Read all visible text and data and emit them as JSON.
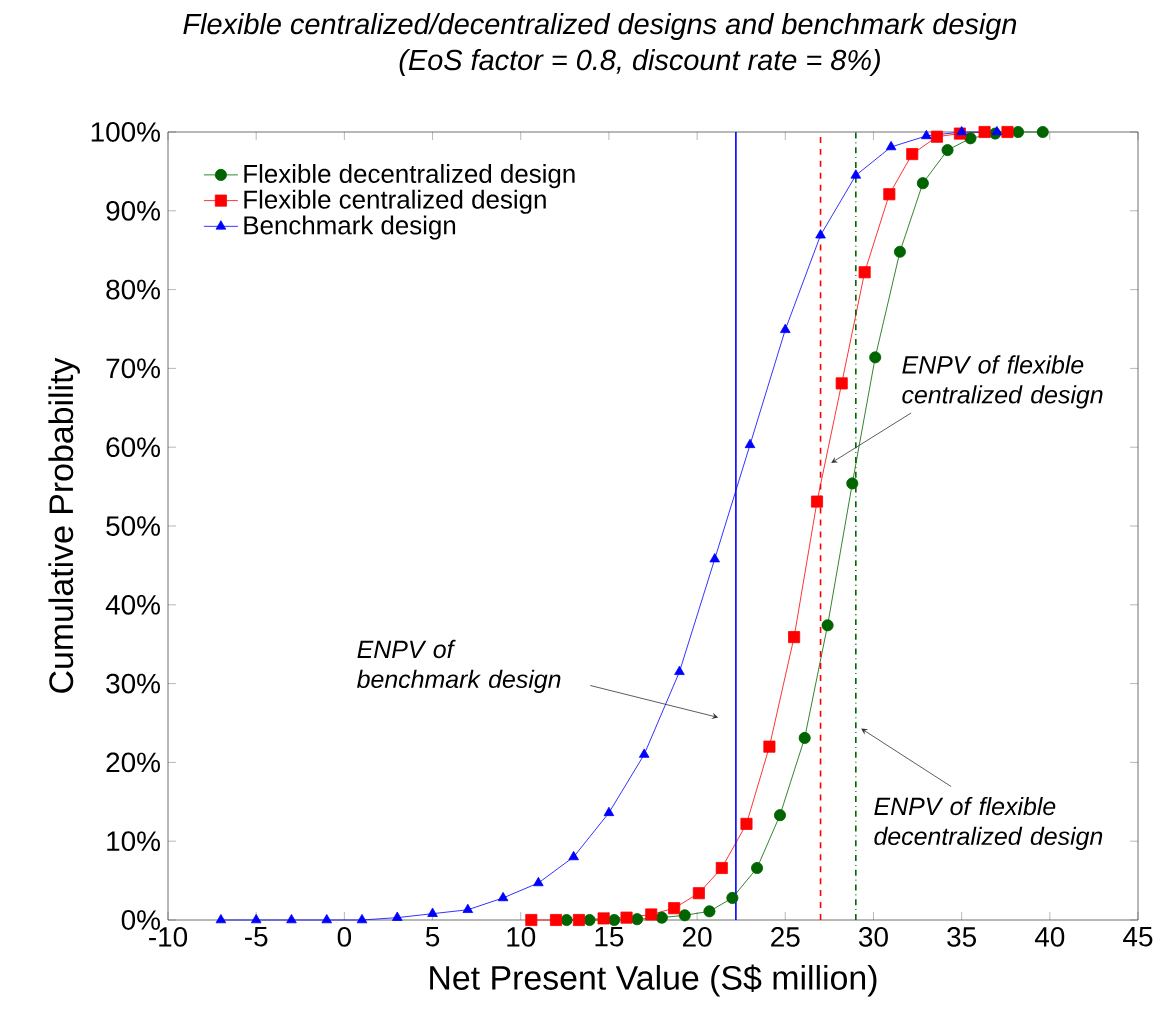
{
  "chart_data": {
    "type": "line",
    "title": "Flexible centralized/decentralized designs and benchmark design",
    "subtitle": "(EoS factor = 0.8, discount rate = 8%)",
    "xlabel": "Net Present Value (S$ million)",
    "ylabel": "Cumulative Probability",
    "series": [
      {
        "name": "Flexible decentralized design",
        "color": "#006400",
        "marker": "circle",
        "x": [
          12.6,
          13.9,
          15.3,
          16.6,
          18.0,
          19.3,
          20.7,
          22.0,
          23.4,
          24.7,
          26.1,
          27.4,
          28.8,
          30.1,
          31.5,
          32.8,
          34.2,
          35.5,
          36.9,
          38.2,
          39.6
        ],
        "values": [
          0,
          0,
          0,
          0.1,
          0.3,
          0.6,
          1.1,
          2.8,
          6.6,
          13.3,
          23.1,
          37.4,
          55.4,
          71.4,
          84.8,
          93.5,
          97.7,
          99.2,
          99.8,
          100,
          100
        ]
      },
      {
        "name": "Flexible centralized design",
        "color": "#ff0000",
        "marker": "square",
        "x": [
          10.6,
          12.0,
          13.3,
          14.7,
          16.0,
          17.4,
          18.7,
          20.1,
          21.4,
          22.8,
          24.1,
          25.5,
          26.8,
          28.2,
          29.5,
          30.9,
          32.2,
          33.6,
          34.9,
          36.3,
          37.6
        ],
        "values": [
          0,
          0,
          0,
          0.2,
          0.3,
          0.7,
          1.5,
          3.4,
          6.6,
          12.2,
          22.0,
          35.9,
          53.1,
          68.1,
          82.2,
          92.1,
          97.2,
          99.4,
          99.8,
          100,
          100
        ]
      },
      {
        "name": "Benchmark design",
        "color": "#0000ff",
        "marker": "triangle",
        "x": [
          -7,
          -5,
          -3,
          -1,
          1,
          3,
          5,
          7,
          9,
          11,
          13,
          15,
          17,
          19,
          21,
          23,
          25,
          27,
          29,
          31,
          33,
          35,
          37
        ],
        "values": [
          0,
          0,
          0,
          0,
          0,
          0.3,
          0.8,
          1.3,
          2.8,
          4.7,
          8.0,
          13.6,
          21.0,
          31.5,
          45.8,
          60.3,
          74.9,
          86.9,
          94.5,
          98.1,
          99.5,
          100,
          100
        ]
      }
    ],
    "ref_lines": [
      {
        "axis": "x",
        "value": 22.2,
        "color": "#0000ff",
        "line_style": "solid"
      },
      {
        "axis": "x",
        "value": 27.0,
        "color": "#ff0000",
        "line_style": "dashed"
      },
      {
        "axis": "x",
        "value": 29.0,
        "color": "#006400",
        "line_style": "dashdot"
      }
    ],
    "annotations": [
      {
        "text": "ENPV of flexible centralized design",
        "x": 27.6,
        "y": 58
      },
      {
        "text": "ENPV of benchmark design",
        "x": 21.2,
        "y": 25.7
      },
      {
        "text": "ENPV of flexible decentralized design",
        "x": 29.3,
        "y": 24.3
      }
    ],
    "xlim": [
      -10,
      45
    ],
    "xticks": [
      -10,
      -5,
      0,
      5,
      10,
      15,
      20,
      25,
      30,
      35,
      40,
      45
    ],
    "ylim": [
      0,
      100
    ],
    "yticks": [
      {
        "value": 0,
        "label": "0%"
      },
      {
        "value": 10,
        "label": "10%"
      },
      {
        "value": 20,
        "label": "20%"
      },
      {
        "value": 30,
        "label": "30%"
      },
      {
        "value": 40,
        "label": "40%"
      },
      {
        "value": 50,
        "label": "50%"
      },
      {
        "value": 60,
        "label": "60%"
      },
      {
        "value": 70,
        "label": "70%"
      },
      {
        "value": 80,
        "label": "80%"
      },
      {
        "value": 90,
        "label": "90%"
      },
      {
        "value": 100,
        "label": "100%"
      }
    ],
    "grid": false,
    "legend": "top left",
    "line_style": "solid"
  }
}
